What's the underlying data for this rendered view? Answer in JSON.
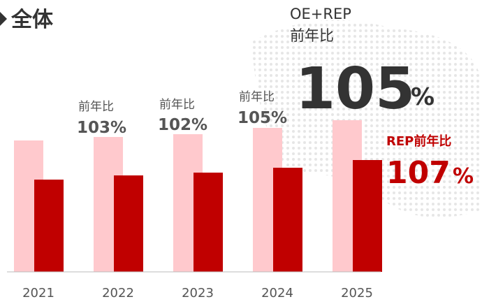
{
  "chart_data": {
    "type": "bar",
    "title": "全体",
    "categories": [
      "2021",
      "2022",
      "2023",
      "2024",
      "2025"
    ],
    "series": [
      {
        "name": "OE+REP",
        "color": "#ffc9cd",
        "values": [
          188,
          193,
          197,
          206,
          217
        ]
      },
      {
        "color": "#c00000",
        "values": [
          132,
          138,
          142,
          149,
          160
        ]
      }
    ],
    "ylim": [
      0,
      230
    ],
    "annotations": [
      {
        "category": "2022",
        "label": "前年比",
        "value": "103%"
      },
      {
        "category": "2023",
        "label": "前年比",
        "value": "102%"
      },
      {
        "category": "2024",
        "label": "前年比",
        "value": "105%"
      }
    ],
    "total_annotation": {
      "label": "前年比",
      "value": "105",
      "unit": "%"
    },
    "rep_annotation": {
      "label": "REP前年比",
      "value": "107",
      "unit": "%"
    }
  }
}
